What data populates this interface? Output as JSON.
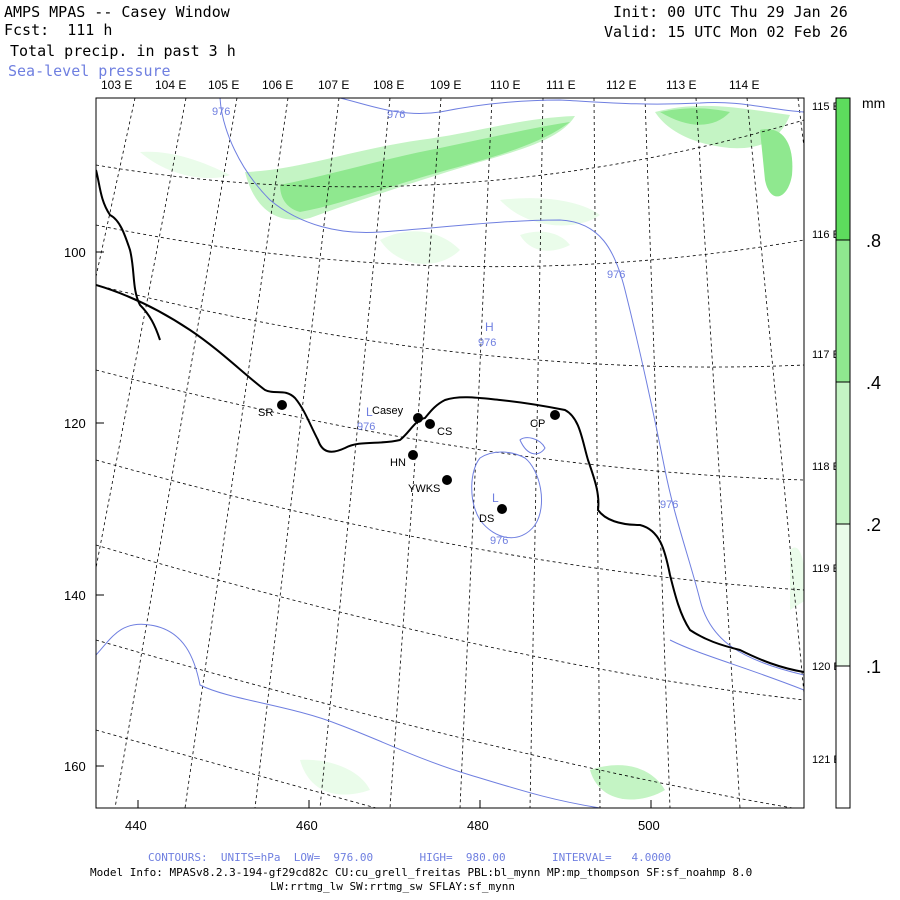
{
  "header": {
    "title": "AMPS MPAS -- Casey Window",
    "forecast": "Fcst:  111 h",
    "field": "Total precip. in past 3 h",
    "overlay": "Sea-level pressure",
    "init": "Init: 00 UTC Thu 29 Jan 26",
    "valid": "Valid: 15 UTC Mon 02 Feb 26"
  },
  "top_longitudes": [
    "103 E",
    "104 E",
    "105 E",
    "106 E",
    "107 E",
    "108 E",
    "109 E",
    "110 E",
    "111 E",
    "112 E",
    "113 E",
    "114 E"
  ],
  "right_longitudes": [
    "115 E",
    "116 E",
    "117 E",
    "118 E",
    "119 E",
    "120 E",
    "121 E"
  ],
  "x_ticks": [
    "440",
    "460",
    "480",
    "500"
  ],
  "y_ticks": [
    "100",
    "120",
    "140",
    "160"
  ],
  "colorbar": {
    "unit": "mm",
    "labels": [
      ".8",
      ".4",
      ".2",
      ".1"
    ],
    "colors": [
      "#5ddc5d",
      "#8fe88f",
      "#c4f4c4",
      "#eafcea",
      "#ffffff"
    ]
  },
  "stations": [
    {
      "code": "SR"
    },
    {
      "code": "Casey"
    },
    {
      "code": "CS"
    },
    {
      "code": "CP"
    },
    {
      "code": "HN"
    },
    {
      "code": "YWKS"
    },
    {
      "code": "DS"
    }
  ],
  "pressure_labels": [
    "976",
    "976",
    "976",
    "976",
    "976",
    "976"
  ],
  "pressure_centers": [
    "H",
    "L",
    "L"
  ],
  "pressure_center_values": [
    "976",
    "976"
  ],
  "footer": {
    "contours": "CONTOURS:  UNITS=hPa  LOW=  976.00       HIGH=  980.00       INTERVAL=   4.0000",
    "model_info_1": "Model Info: MPASv8.2.3-194-gf29cd82c CU:cu_grell_freitas PBL:bl_mynn MP:mp_thompson SF:sf_noahmp 8.0",
    "model_info_2": "LW:rrtmg_lw SW:rrtmg_sw SFLAY:sf_mynn"
  }
}
